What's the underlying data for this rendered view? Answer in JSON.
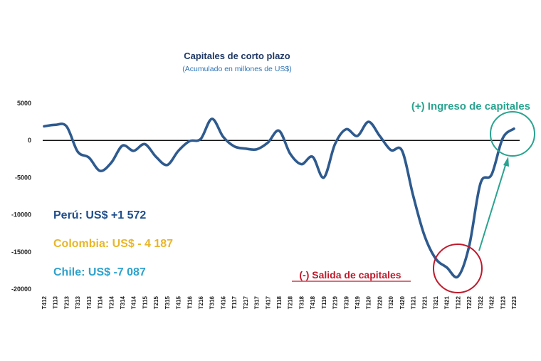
{
  "chart_data": {
    "type": "line",
    "title": "Capitales de corto plazo",
    "subtitle": "(Acumulado en millones de US$)",
    "y_ticks": [
      5000,
      0,
      -5000,
      -10000,
      -15000,
      -20000
    ],
    "ylim": [
      -20000,
      5000
    ],
    "categories": [
      "T412",
      "T113",
      "T213",
      "T313",
      "T413",
      "T114",
      "T214",
      "T314",
      "T414",
      "T115",
      "T215",
      "T315",
      "T415",
      "T116",
      "T216",
      "T316",
      "T416",
      "T117",
      "T217",
      "T317",
      "T417",
      "T118",
      "T218",
      "T318",
      "T418",
      "T119",
      "T219",
      "T319",
      "T419",
      "T120",
      "T220",
      "T320",
      "T420",
      "T121",
      "T221",
      "T321",
      "T421",
      "T122",
      "T222",
      "T322",
      "T422",
      "T123",
      "T223"
    ],
    "series": [
      {
        "name": "Capitales de corto plazo",
        "color": "#2e5a8e",
        "values": [
          1900,
          2100,
          1900,
          -1500,
          -2300,
          -4100,
          -3000,
          -700,
          -1400,
          -500,
          -2200,
          -3300,
          -1400,
          -100,
          200,
          2900,
          500,
          -800,
          -1100,
          -1200,
          -300,
          1300,
          -1800,
          -3200,
          -2200,
          -5000,
          -500,
          1500,
          600,
          2500,
          600,
          -1300,
          -1400,
          -7500,
          -12800,
          -15900,
          -17100,
          -18300,
          -14200,
          -5800,
          -4600,
          300,
          1572
        ]
      }
    ],
    "stats": [
      {
        "label": "Perú: US$ +1 572",
        "color": "#1f4e8c"
      },
      {
        "label": "Colombia: US$ - 4 187",
        "color": "#e8b62a"
      },
      {
        "label": "Chile: US$ -7 087",
        "color": "#2ea2cc"
      }
    ],
    "annotations": {
      "inflow": {
        "label": "(+) Ingreso de capitales",
        "color": "#2aa38f"
      },
      "outflow": {
        "label": "(-) Salida de capitales",
        "color": "#c0192b"
      }
    }
  }
}
